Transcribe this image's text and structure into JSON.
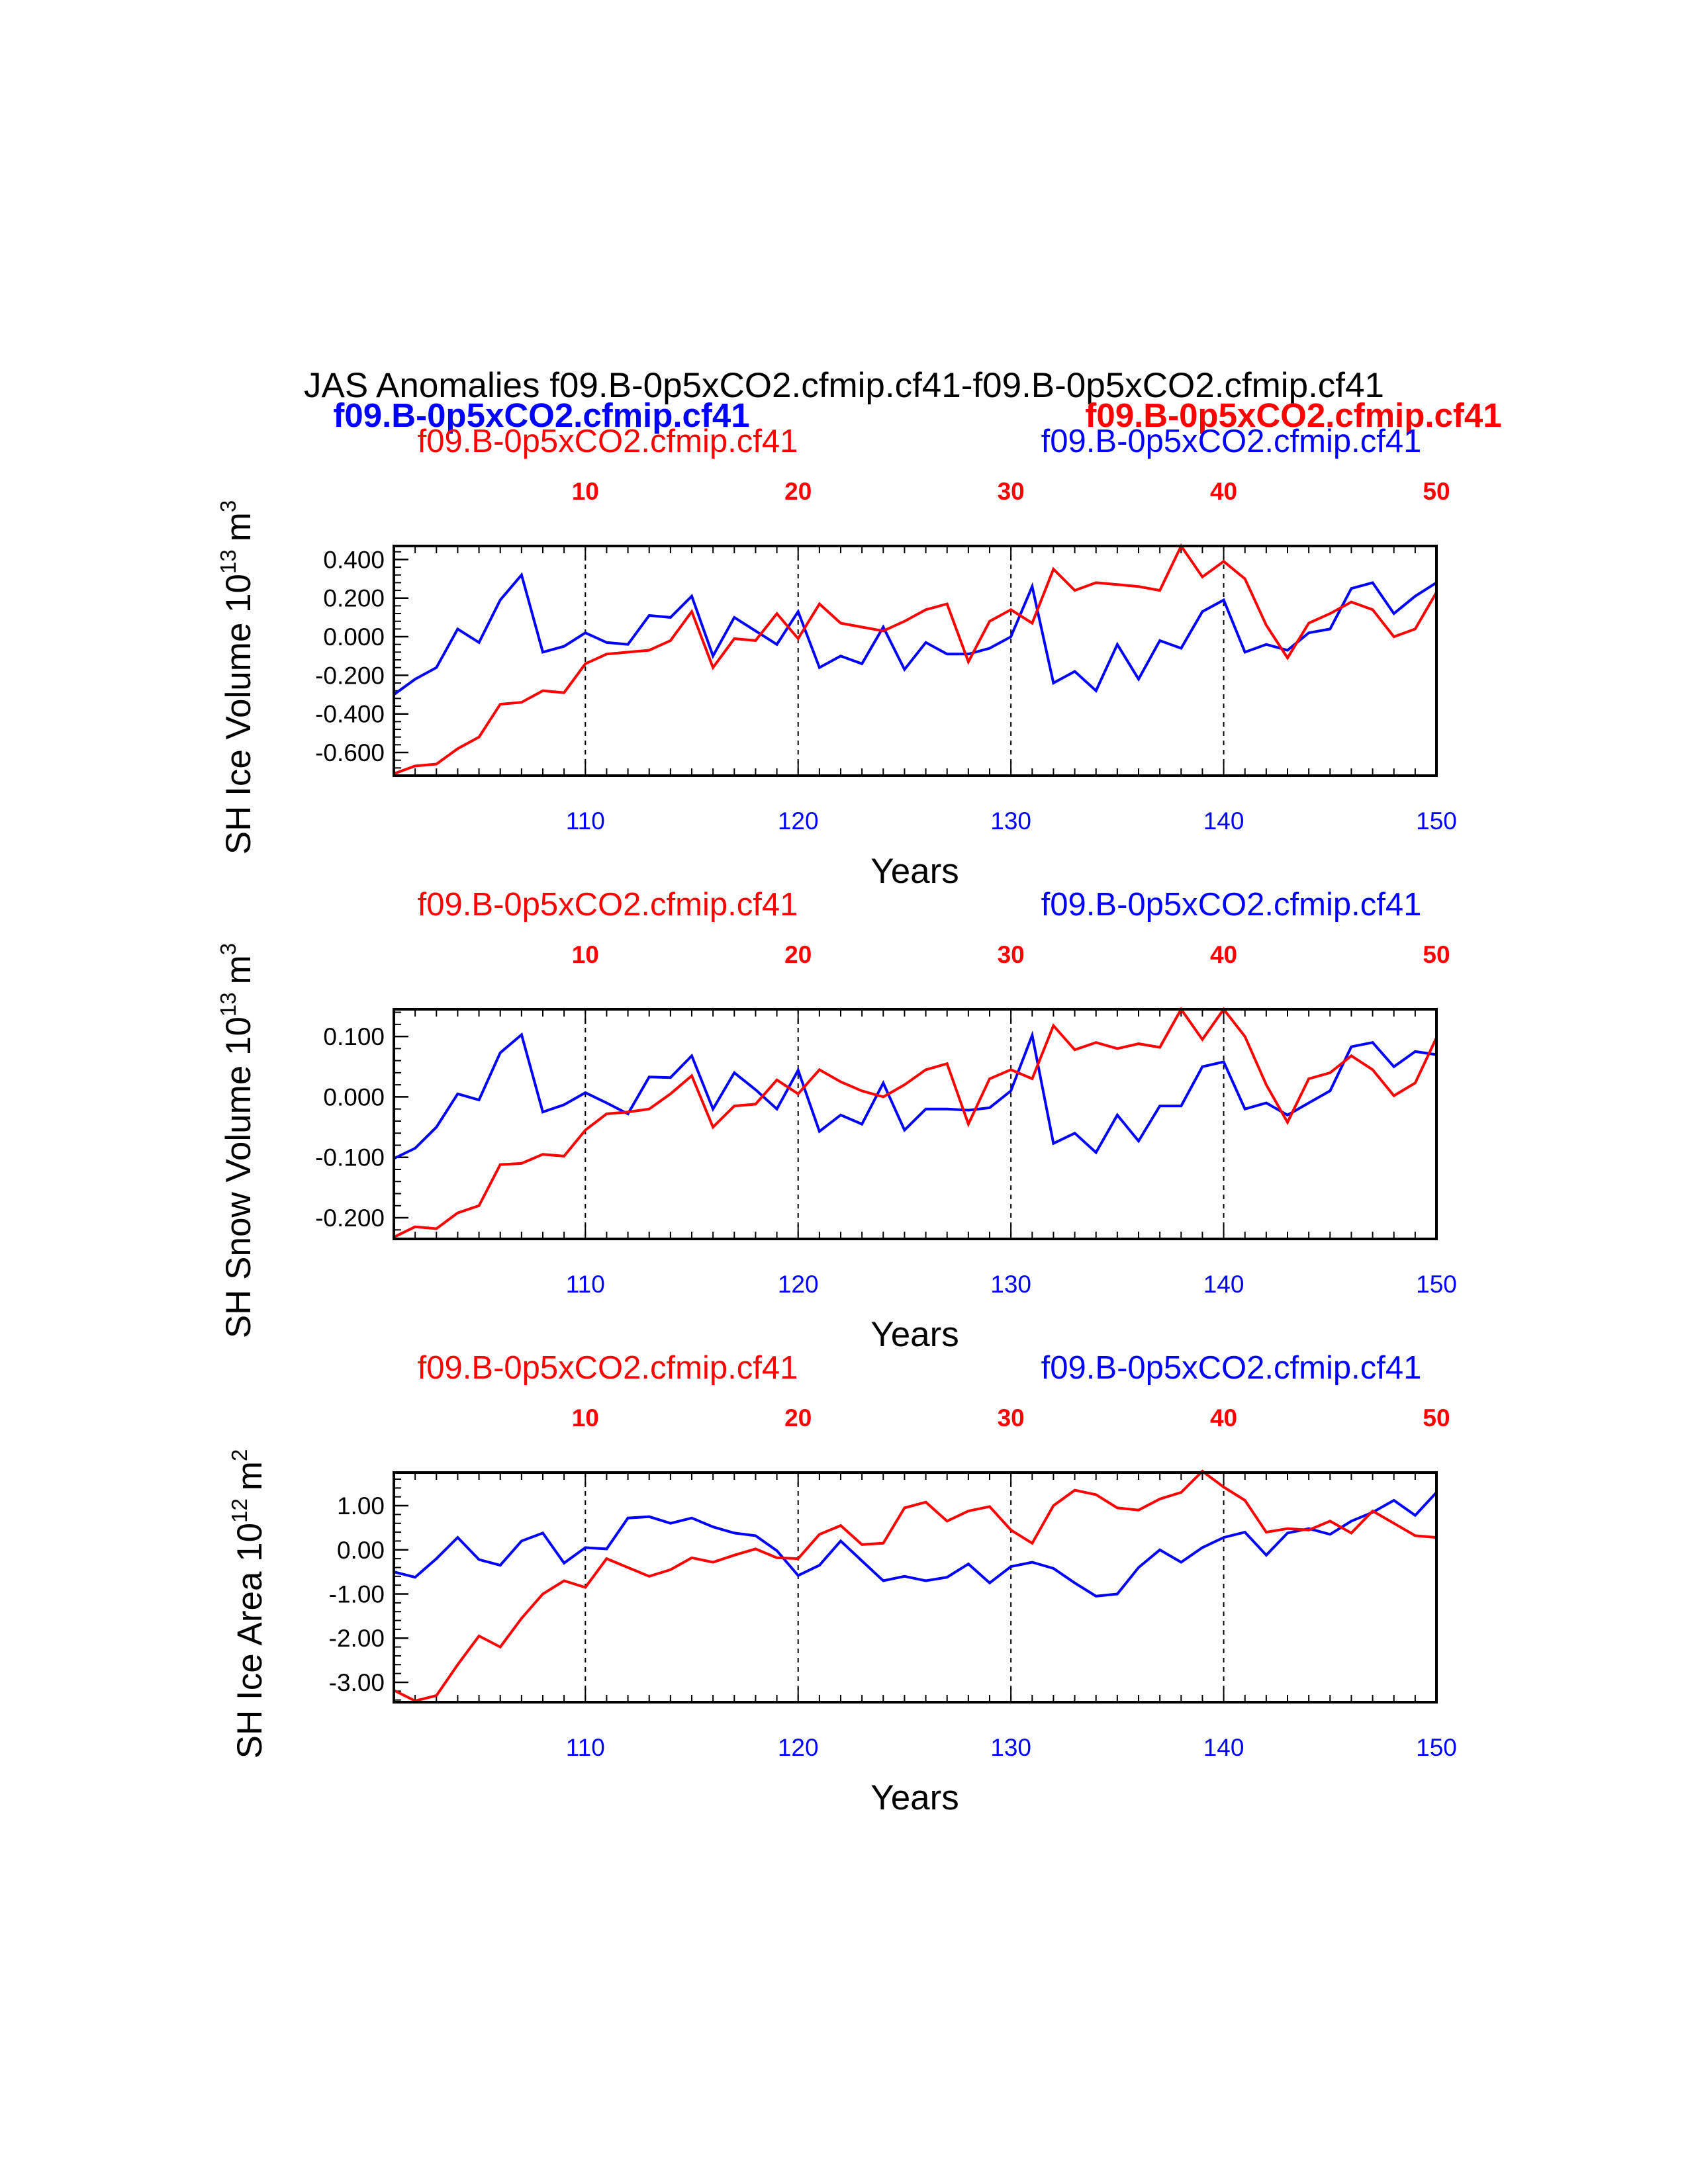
{
  "title": "JAS Anomalies f09.B-0p5xCO2.cfmip.cf41-f09.B-0p5xCO2.cfmip.cf41",
  "header": {
    "case1_bold": "f09.B-0p5xCO2.cfmip.cf41",
    "case2_bold": "f09.B-0p5xCO2.cfmip.cf41"
  },
  "colors": {
    "case_blue": "#0000ff",
    "case_red": "#ff0000",
    "axis": "#000000"
  },
  "chart_data": [
    {
      "type": "line",
      "ylabel": "SH Ice Volume 10",
      "ylabel_sup": "13",
      "ylabel_unit": "m",
      "ylabel_unit_sup": "3",
      "xlabel": "Years",
      "subtitle_left": "f09.B-0p5xCO2.cfmip.cf41",
      "subtitle_right": "f09.B-0p5xCO2.cfmip.cf41",
      "ylim": [
        -0.72,
        0.47
      ],
      "yticks": [
        -0.6,
        -0.4,
        -0.2,
        0.0,
        0.2,
        0.4
      ],
      "ytick_labels": [
        "-0.600",
        "-0.400",
        "-0.200",
        "0.000",
        "0.200",
        "0.400"
      ],
      "bottom_xlim": [
        101,
        150
      ],
      "bottom_xticks": [
        "110",
        "120",
        "130",
        "140",
        "150"
      ],
      "top_xlim": [
        1,
        50
      ],
      "top_xticks": [
        "10",
        "20",
        "30",
        "40",
        "50"
      ],
      "grid": "dashed vertical lines at top-axis ticks",
      "series": [
        {
          "axis": "bottom",
          "color": "#0000ff",
          "x": [
            101,
            102,
            103,
            104,
            105,
            106,
            107,
            108,
            109,
            110,
            111,
            112,
            113,
            114,
            115,
            116,
            117,
            118,
            119,
            120,
            121,
            122,
            123,
            124,
            125,
            126,
            127,
            128,
            129,
            130,
            131,
            132,
            133,
            134,
            135,
            136,
            137,
            138,
            139,
            140,
            141,
            142,
            143,
            144,
            145,
            146,
            147,
            148,
            149,
            150
          ],
          "values": [
            -0.3,
            -0.22,
            -0.16,
            0.04,
            -0.03,
            0.19,
            0.32,
            -0.08,
            -0.05,
            0.02,
            -0.03,
            -0.04,
            0.11,
            0.1,
            0.21,
            -0.1,
            0.1,
            0.03,
            -0.04,
            0.13,
            -0.16,
            -0.1,
            -0.14,
            0.05,
            -0.17,
            -0.03,
            -0.09,
            -0.09,
            -0.06,
            0.0,
            0.26,
            -0.24,
            -0.18,
            -0.28,
            -0.04,
            -0.22,
            -0.02,
            -0.06,
            0.13,
            0.19,
            -0.08,
            -0.04,
            -0.07,
            0.02,
            0.04,
            0.25,
            0.28,
            0.12,
            0.21,
            0.28
          ]
        },
        {
          "axis": "top",
          "color": "#ff0000",
          "x": [
            1,
            2,
            3,
            4,
            5,
            6,
            7,
            8,
            9,
            10,
            11,
            12,
            13,
            14,
            15,
            16,
            17,
            18,
            19,
            20,
            21,
            22,
            23,
            24,
            25,
            26,
            27,
            28,
            29,
            30,
            31,
            32,
            33,
            34,
            35,
            36,
            37,
            38,
            39,
            40,
            41,
            42,
            43,
            44,
            45,
            46,
            47,
            48,
            49,
            50
          ],
          "values": [
            -0.71,
            -0.67,
            -0.66,
            -0.58,
            -0.52,
            -0.35,
            -0.34,
            -0.28,
            -0.29,
            -0.14,
            -0.09,
            -0.08,
            -0.07,
            -0.02,
            0.13,
            -0.16,
            -0.01,
            -0.02,
            0.12,
            -0.01,
            0.17,
            0.07,
            0.05,
            0.03,
            0.08,
            0.14,
            0.17,
            -0.13,
            0.08,
            0.14,
            0.07,
            0.35,
            0.24,
            0.28,
            0.27,
            0.26,
            0.24,
            0.47,
            0.31,
            0.39,
            0.3,
            0.06,
            -0.11,
            0.07,
            0.12,
            0.18,
            0.14,
            0.0,
            0.04,
            0.23
          ]
        }
      ]
    },
    {
      "type": "line",
      "ylabel": "SH Snow Volume 10",
      "ylabel_sup": "13",
      "ylabel_unit": "m",
      "ylabel_unit_sup": "3",
      "xlabel": "Years",
      "subtitle_left": "f09.B-0p5xCO2.cfmip.cf41",
      "subtitle_right": "f09.B-0p5xCO2.cfmip.cf41",
      "ylim": [
        -0.235,
        0.145
      ],
      "yticks": [
        -0.2,
        -0.1,
        0.0,
        0.1
      ],
      "ytick_labels": [
        "-0.200",
        "-0.100",
        "0.000",
        "0.100"
      ],
      "bottom_xlim": [
        101,
        150
      ],
      "bottom_xticks": [
        "110",
        "120",
        "130",
        "140",
        "150"
      ],
      "top_xlim": [
        1,
        50
      ],
      "top_xticks": [
        "10",
        "20",
        "30",
        "40",
        "50"
      ],
      "grid": "dashed vertical lines at top-axis ticks",
      "series": [
        {
          "axis": "bottom",
          "color": "#0000ff",
          "x": [
            101,
            102,
            103,
            104,
            105,
            106,
            107,
            108,
            109,
            110,
            111,
            112,
            113,
            114,
            115,
            116,
            117,
            118,
            119,
            120,
            121,
            122,
            123,
            124,
            125,
            126,
            127,
            128,
            129,
            130,
            131,
            132,
            133,
            134,
            135,
            136,
            137,
            138,
            139,
            140,
            141,
            142,
            143,
            144,
            145,
            146,
            147,
            148,
            149,
            150
          ],
          "values": [
            -0.102,
            -0.085,
            -0.05,
            0.005,
            -0.005,
            0.073,
            0.103,
            -0.025,
            -0.013,
            0.007,
            -0.01,
            -0.028,
            0.033,
            0.032,
            0.068,
            -0.02,
            0.04,
            0.012,
            -0.02,
            0.044,
            -0.057,
            -0.03,
            -0.045,
            0.023,
            -0.055,
            -0.02,
            -0.02,
            -0.022,
            -0.018,
            0.01,
            0.102,
            -0.077,
            -0.06,
            -0.092,
            -0.03,
            -0.073,
            -0.015,
            -0.015,
            0.05,
            0.058,
            -0.02,
            -0.01,
            -0.03,
            -0.01,
            0.01,
            0.083,
            0.09,
            0.05,
            0.075,
            0.07
          ]
        },
        {
          "axis": "top",
          "color": "#ff0000",
          "x": [
            1,
            2,
            3,
            4,
            5,
            6,
            7,
            8,
            9,
            10,
            11,
            12,
            13,
            14,
            15,
            16,
            17,
            18,
            19,
            20,
            21,
            22,
            23,
            24,
            25,
            26,
            27,
            28,
            29,
            30,
            31,
            32,
            33,
            34,
            35,
            36,
            37,
            38,
            39,
            40,
            41,
            42,
            43,
            44,
            45,
            46,
            47,
            48,
            49,
            50
          ],
          "values": [
            -0.232,
            -0.215,
            -0.218,
            -0.192,
            -0.18,
            -0.112,
            -0.11,
            -0.095,
            -0.098,
            -0.055,
            -0.028,
            -0.025,
            -0.02,
            0.005,
            0.035,
            -0.05,
            -0.015,
            -0.012,
            0.028,
            0.005,
            0.045,
            0.025,
            0.01,
            0.0,
            0.02,
            0.045,
            0.055,
            -0.045,
            0.03,
            0.045,
            0.03,
            0.118,
            0.078,
            0.09,
            0.08,
            0.088,
            0.082,
            0.145,
            0.095,
            0.145,
            0.1,
            0.02,
            -0.042,
            0.03,
            0.04,
            0.068,
            0.045,
            0.002,
            0.023,
            0.098
          ]
        }
      ]
    },
    {
      "type": "line",
      "ylabel": "SH Ice Area 10",
      "ylabel_sup": "12",
      "ylabel_unit": "m",
      "ylabel_unit_sup": "2",
      "xlabel": "Years",
      "subtitle_left": "f09.B-0p5xCO2.cfmip.cf41",
      "subtitle_right": "f09.B-0p5xCO2.cfmip.cf41",
      "ylim": [
        -3.45,
        1.75
      ],
      "yticks": [
        -3.0,
        -2.0,
        -1.0,
        0.0,
        1.0
      ],
      "ytick_labels": [
        "-3.00",
        "-2.00",
        "-1.00",
        "0.00",
        "1.00"
      ],
      "bottom_xlim": [
        101,
        150
      ],
      "bottom_xticks": [
        "110",
        "120",
        "130",
        "140",
        "150"
      ],
      "top_xlim": [
        1,
        50
      ],
      "top_xticks": [
        "10",
        "20",
        "30",
        "40",
        "50"
      ],
      "grid": "dashed vertical lines at top-axis ticks",
      "series": [
        {
          "axis": "bottom",
          "color": "#0000ff",
          "x": [
            101,
            102,
            103,
            104,
            105,
            106,
            107,
            108,
            109,
            110,
            111,
            112,
            113,
            114,
            115,
            116,
            117,
            118,
            119,
            120,
            121,
            122,
            123,
            124,
            125,
            126,
            127,
            128,
            129,
            130,
            131,
            132,
            133,
            134,
            135,
            136,
            137,
            138,
            139,
            140,
            141,
            142,
            143,
            144,
            145,
            146,
            147,
            148,
            149,
            150
          ],
          "values": [
            -0.5,
            -0.62,
            -0.2,
            0.28,
            -0.22,
            -0.35,
            0.2,
            0.38,
            -0.3,
            0.05,
            0.02,
            0.72,
            0.75,
            0.6,
            0.72,
            0.52,
            0.38,
            0.32,
            -0.02,
            -0.58,
            -0.35,
            0.2,
            -0.25,
            -0.7,
            -0.6,
            -0.7,
            -0.62,
            -0.32,
            -0.75,
            -0.38,
            -0.28,
            -0.42,
            -0.75,
            -1.05,
            -1.0,
            -0.4,
            0.0,
            -0.28,
            0.05,
            0.28,
            0.4,
            -0.12,
            0.38,
            0.48,
            0.35,
            0.65,
            0.85,
            1.12,
            0.78,
            1.3
          ]
        },
        {
          "axis": "top",
          "color": "#ff0000",
          "x": [
            1,
            2,
            3,
            4,
            5,
            6,
            7,
            8,
            9,
            10,
            11,
            12,
            13,
            14,
            15,
            16,
            17,
            18,
            19,
            20,
            21,
            22,
            23,
            24,
            25,
            26,
            27,
            28,
            29,
            30,
            31,
            32,
            33,
            34,
            35,
            36,
            37,
            38,
            39,
            40,
            41,
            42,
            43,
            44,
            45,
            46,
            47,
            48,
            49,
            50
          ],
          "values": [
            -3.18,
            -3.42,
            -3.3,
            -2.6,
            -1.95,
            -2.2,
            -1.55,
            -1.0,
            -0.7,
            -0.85,
            -0.2,
            -0.4,
            -0.6,
            -0.45,
            -0.18,
            -0.28,
            -0.12,
            0.02,
            -0.18,
            -0.2,
            0.35,
            0.55,
            0.12,
            0.15,
            0.95,
            1.08,
            0.65,
            0.88,
            0.98,
            0.45,
            0.15,
            1.0,
            1.35,
            1.25,
            0.95,
            0.9,
            1.15,
            1.3,
            1.78,
            1.42,
            1.12,
            0.4,
            0.48,
            0.45,
            0.65,
            0.38,
            0.88,
            0.6,
            0.32,
            0.28
          ]
        }
      ]
    }
  ]
}
